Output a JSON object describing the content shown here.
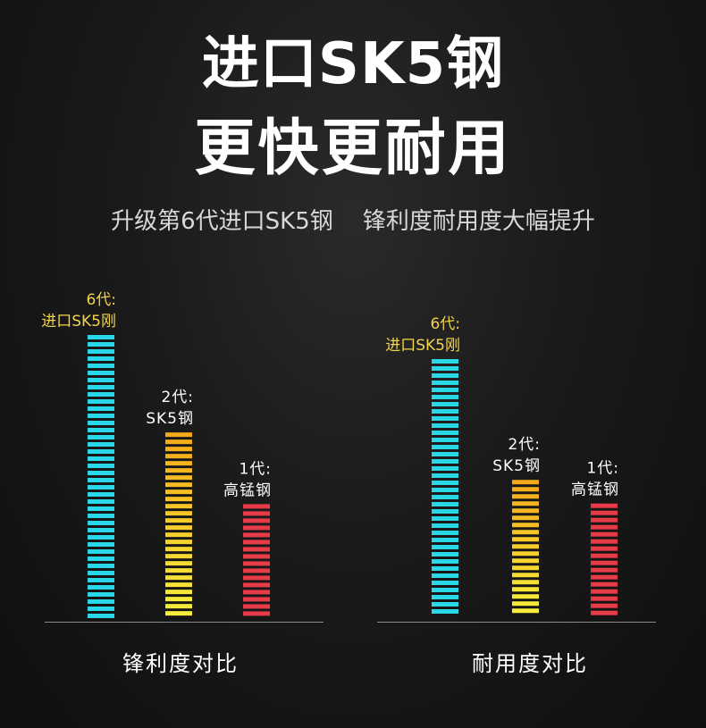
{
  "header": {
    "title_line1": "进口SK5钢",
    "title_line2": "更快更耐用",
    "subtitle": "升级第6代进口SK5钢    锋利度耐用度大幅提升"
  },
  "chart_data": [
    {
      "type": "bar",
      "title": "锋利度对比",
      "categories": [
        "6代:\n进口SK5刚",
        "2代:\nSK5钢",
        "1代:\n高锰钢"
      ],
      "values": [
        100,
        66,
        41
      ],
      "colors": [
        [
          "#2ad7e8",
          "#2ad7e8"
        ],
        [
          "#f6a91a",
          "#f6ee3a"
        ],
        [
          "#e83a48",
          "#e83a48"
        ]
      ],
      "ylim": [
        0,
        100
      ],
      "grid": false
    },
    {
      "type": "bar",
      "title": "耐用度对比",
      "categories": [
        "6代:\n进口SK5刚",
        "2代:\nSK5钢",
        "1代:\n高锰钢"
      ],
      "values": [
        100,
        54,
        45
      ],
      "colors": [
        [
          "#2ad7e8",
          "#2ad7e8"
        ],
        [
          "#f6a91a",
          "#f6ee3a"
        ],
        [
          "#e83a48",
          "#e83a48"
        ]
      ],
      "ylim": [
        0,
        100
      ],
      "grid": false
    }
  ]
}
